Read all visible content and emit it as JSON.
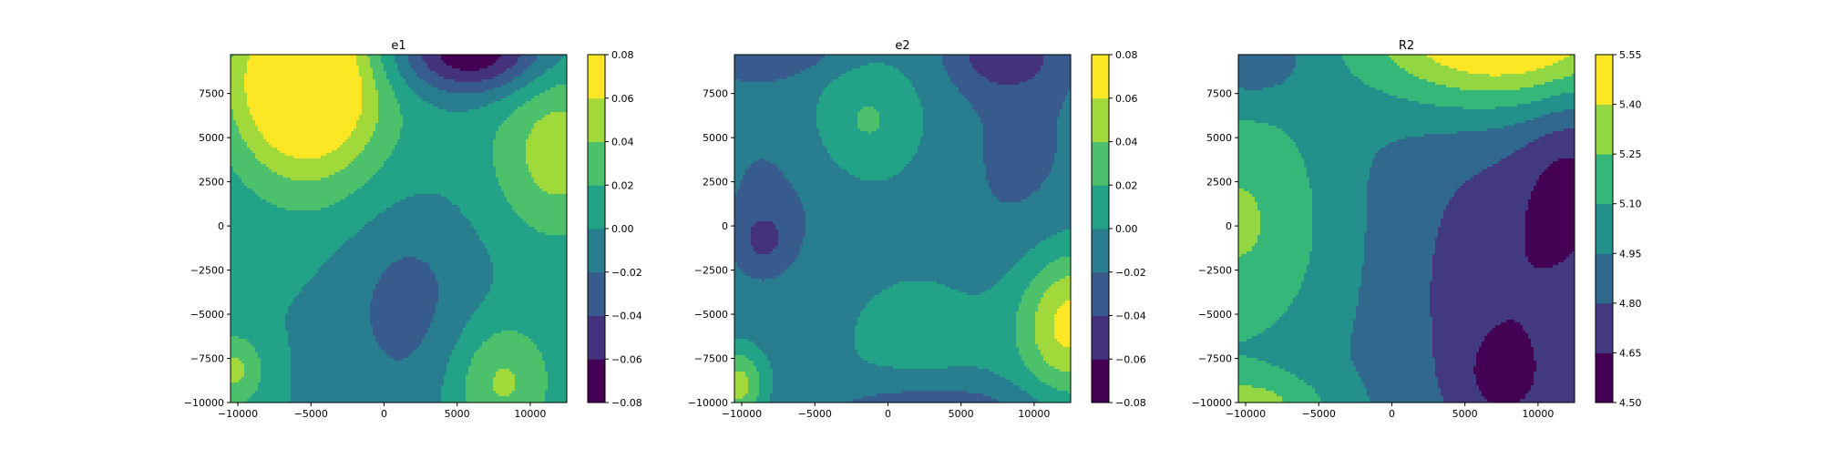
{
  "chart_data": [
    {
      "type": "contour",
      "title": "e1",
      "xticks": [
        -10000,
        -5000,
        0,
        5000,
        10000
      ],
      "yticks": [
        -10000,
        -7500,
        -5000,
        -2500,
        0,
        2500,
        5000,
        7500
      ],
      "xlim": [
        -10500,
        12500
      ],
      "ylim": [
        -10000,
        9700
      ],
      "colorbar": {
        "levels": [
          -0.08,
          -0.06,
          -0.04,
          -0.02,
          0.0,
          0.02,
          0.04,
          0.06,
          0.08
        ],
        "tick_labels": [
          "−0.08",
          "−0.06",
          "−0.04",
          "−0.02",
          "0.00",
          "0.02",
          "0.04",
          "0.06",
          "0.08"
        ]
      },
      "field": {
        "base": 0.0,
        "bumps": [
          {
            "x": -5500,
            "y": 8300,
            "sx": 3500,
            "sy": 3500,
            "a": 0.11
          },
          {
            "x": 12000,
            "y": 4300,
            "sx": 3000,
            "sy": 3500,
            "a": 0.05
          },
          {
            "x": 8000,
            "y": -8800,
            "sx": 2500,
            "sy": 2500,
            "a": 0.045
          },
          {
            "x": -10300,
            "y": -8200,
            "sx": 1500,
            "sy": 1500,
            "a": 0.045
          },
          {
            "x": 1500,
            "y": -3500,
            "sx": 3500,
            "sy": 5000,
            "a": -0.03
          },
          {
            "x": 6000,
            "y": 9800,
            "sx": 3500,
            "sy": 1600,
            "a": -0.08
          },
          {
            "x": -1000,
            "y": 3000,
            "sx": 6000,
            "sy": 4000,
            "a": 0.018
          }
        ]
      }
    },
    {
      "type": "contour",
      "title": "e2",
      "xticks": [
        -10000,
        -5000,
        0,
        5000,
        10000
      ],
      "yticks": [
        -10000,
        -7500,
        -5000,
        -2500,
        0,
        2500,
        5000,
        7500
      ],
      "xlim": [
        -10500,
        12500
      ],
      "ylim": [
        -10000,
        9700
      ],
      "colorbar": {
        "levels": [
          -0.08,
          -0.06,
          -0.04,
          -0.02,
          0.0,
          0.02,
          0.04,
          0.06,
          0.08
        ],
        "tick_labels": [
          "−0.08",
          "−0.06",
          "−0.04",
          "−0.02",
          "0.00",
          "0.02",
          "0.04",
          "0.06",
          "0.08"
        ]
      },
      "field": {
        "base": -0.012,
        "bumps": [
          {
            "x": -1500,
            "y": 6000,
            "sx": 2800,
            "sy": 2500,
            "a": 0.035
          },
          {
            "x": 12500,
            "y": -5500,
            "sx": 2500,
            "sy": 3000,
            "a": 0.075
          },
          {
            "x": -10200,
            "y": -9000,
            "sx": 1300,
            "sy": 1500,
            "a": 0.06
          },
          {
            "x": 2500,
            "y": -6000,
            "sx": 7000,
            "sy": 3500,
            "a": 0.018
          },
          {
            "x": -8500,
            "y": -700,
            "sx": 1000,
            "sy": 1000,
            "a": -0.03
          },
          {
            "x": -7500,
            "y": 0,
            "sx": 3500,
            "sy": 5500,
            "a": -0.012
          },
          {
            "x": 9000,
            "y": 3500,
            "sx": 3000,
            "sy": 6000,
            "a": -0.012
          },
          {
            "x": 8000,
            "y": 9800,
            "sx": 2500,
            "sy": 1500,
            "a": -0.04
          },
          {
            "x": -8000,
            "y": 9900,
            "sx": 3500,
            "sy": 1000,
            "a": -0.025
          },
          {
            "x": 3000,
            "y": -10200,
            "sx": 5000,
            "sy": 1000,
            "a": -0.028
          }
        ]
      }
    },
    {
      "type": "contour",
      "title": "R2",
      "xticks": [
        -10000,
        -5000,
        0,
        5000,
        10000
      ],
      "yticks": [
        -10000,
        -7500,
        -5000,
        -2500,
        0,
        2500,
        5000,
        7500
      ],
      "xlim": [
        -10500,
        12500
      ],
      "ylim": [
        -10000,
        9700
      ],
      "colorbar": {
        "levels": [
          4.5,
          4.65,
          4.8,
          4.95,
          5.1,
          5.25,
          5.4,
          5.55
        ],
        "tick_labels": [
          "4.50",
          "4.65",
          "4.80",
          "4.95",
          "5.10",
          "5.25",
          "5.40",
          "5.55"
        ]
      },
      "field": {
        "base": 4.93,
        "bumps": [
          {
            "x": -10500,
            "y": 200,
            "sx": 4500,
            "sy": 5500,
            "a": 0.34
          },
          {
            "x": -10000,
            "y": -10300,
            "sx": 4000,
            "sy": 1400,
            "a": 0.35
          },
          {
            "x": 7500,
            "y": 11000,
            "sx": 6500,
            "sy": 3000,
            "a": 0.75
          },
          {
            "x": 8500,
            "y": -5000,
            "sx": 4500,
            "sy": 7000,
            "a": -0.22
          },
          {
            "x": 12500,
            "y": 2500,
            "sx": 2500,
            "sy": 3500,
            "a": -0.25
          },
          {
            "x": 7500,
            "y": -8700,
            "sx": 2000,
            "sy": 1800,
            "a": -0.14
          },
          {
            "x": -9500,
            "y": 9500,
            "sx": 2500,
            "sy": 1800,
            "a": -0.2
          },
          {
            "x": 5000,
            "y": 0,
            "sx": 5000,
            "sy": 8000,
            "a": -0.05
          }
        ]
      }
    }
  ]
}
